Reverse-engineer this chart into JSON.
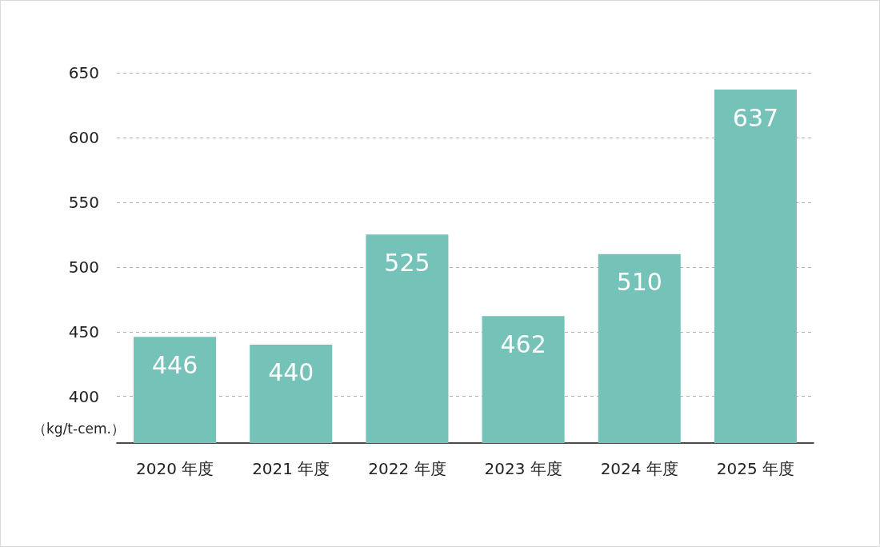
{
  "chart_data": {
    "type": "bar",
    "ylabel": "（kg/t-cem.）",
    "categories": [
      "2020 年度",
      "2021 年度",
      "2022 年度",
      "2023 年度",
      "2024 年度",
      "2025 年度"
    ],
    "values": [
      446,
      440,
      525,
      462,
      510,
      637
    ],
    "color": "#74c2b8",
    "ylim": [
      364,
      650
    ],
    "yticks": [
      400,
      450,
      500,
      550,
      600,
      650
    ],
    "grid": "y",
    "data_labels": true
  }
}
